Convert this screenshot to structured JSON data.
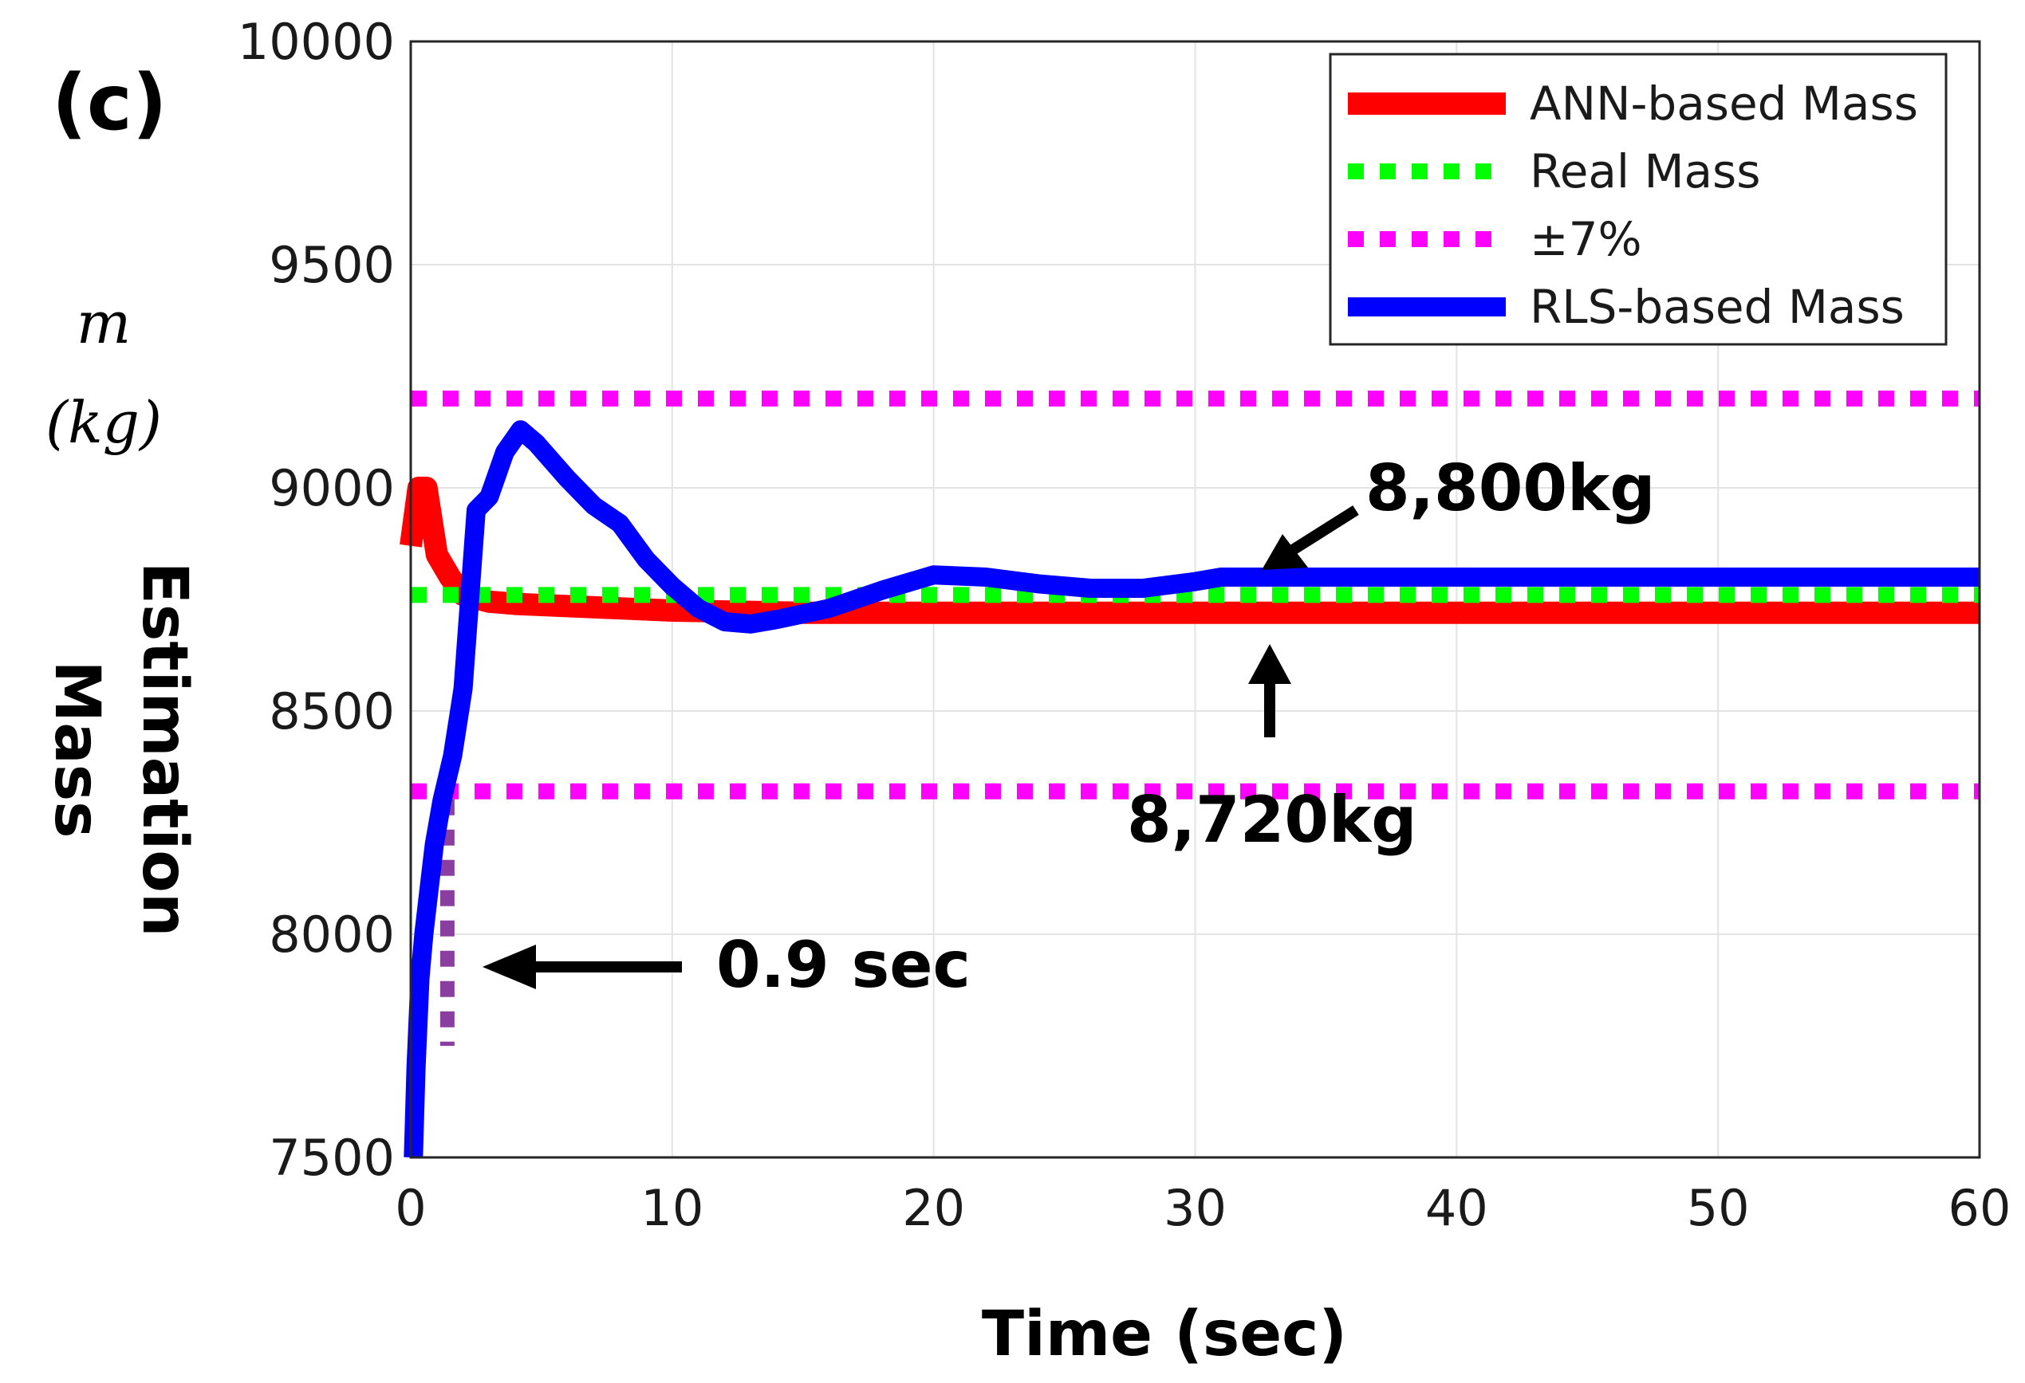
{
  "chart_data": {
    "type": "line",
    "panel_label": "(c)",
    "xlabel": "Time (sec)",
    "ylabel_math": [
      "m",
      "(kg)"
    ],
    "ylabel_words": [
      "Estimation",
      "Mass"
    ],
    "xlim": [
      0,
      60
    ],
    "ylim": [
      7500,
      10000
    ],
    "xticks": [
      0,
      10,
      20,
      30,
      40,
      50,
      60
    ],
    "yticks": [
      7500,
      8000,
      8500,
      9000,
      9500,
      10000
    ],
    "grid": true,
    "legend_position": "top-right",
    "series": [
      {
        "name": "ANN-based Mass",
        "color": "#ff0000",
        "style": "solid",
        "x": [
          0,
          0.3,
          0.6,
          1.0,
          1.5,
          2,
          3,
          4,
          6,
          8,
          10,
          15,
          20,
          30,
          40,
          50,
          60
        ],
        "y": [
          8870,
          9000,
          9000,
          8850,
          8800,
          8760,
          8745,
          8740,
          8735,
          8730,
          8725,
          8720,
          8720,
          8720,
          8720,
          8720,
          8720
        ]
      },
      {
        "name": "Real Mass",
        "color": "#00ff00",
        "style": "dotted",
        "x": [
          0,
          60
        ],
        "y": [
          8760,
          8760
        ]
      },
      {
        "name": "±7%",
        "color": "#ff00ff",
        "style": "dotted",
        "lines": [
          {
            "x": [
              0,
              60
            ],
            "y": [
              9200,
              9200
            ]
          },
          {
            "x": [
              0,
              60
            ],
            "y": [
              8320,
              8320
            ]
          },
          {
            "x": [
              1.4,
              1.4
            ],
            "y": [
              8370,
              7750
            ]
          }
        ]
      },
      {
        "name": "RLS-based Mass",
        "color": "#0000ff",
        "style": "solid",
        "x": [
          0.1,
          0.2,
          0.35,
          0.5,
          0.7,
          0.9,
          1.2,
          1.6,
          2.0,
          2.5,
          3.0,
          3.6,
          4.2,
          4.8,
          5.4,
          6.0,
          7.0,
          8.0,
          9.0,
          10.0,
          11.0,
          12.0,
          13.0,
          14.0,
          16.0,
          18.0,
          20.0,
          22.0,
          24.0,
          26.0,
          28.0,
          30.0,
          31.0,
          35.0,
          40.0,
          50.0,
          60.0
        ],
        "y": [
          7500,
          7700,
          7900,
          8000,
          8100,
          8200,
          8300,
          8400,
          8550,
          8950,
          8980,
          9080,
          9130,
          9100,
          9060,
          9020,
          8960,
          8920,
          8840,
          8780,
          8730,
          8700,
          8695,
          8705,
          8730,
          8770,
          8805,
          8800,
          8785,
          8775,
          8775,
          8790,
          8800,
          8800,
          8800,
          8800,
          8800
        ]
      }
    ],
    "annotations": [
      {
        "text": "8,800kg",
        "target_x": 33,
        "target_y": 8800
      },
      {
        "text": "8,720kg",
        "target_x": 33,
        "target_y": 8720
      },
      {
        "text": "0.9 sec",
        "target_x": 2.6,
        "target_y": 7930
      }
    ]
  }
}
